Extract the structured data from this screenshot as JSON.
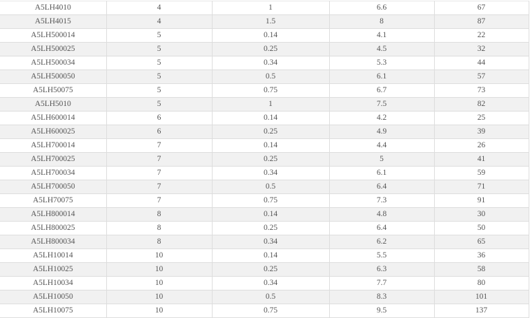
{
  "table": {
    "rows": [
      [
        "A5LH4010",
        "4",
        "1",
        "6.6",
        "67"
      ],
      [
        "A5LH4015",
        "4",
        "1.5",
        "8",
        "87"
      ],
      [
        "A5LH500014",
        "5",
        "0.14",
        "4.1",
        "22"
      ],
      [
        "A5LH500025",
        "5",
        "0.25",
        "4.5",
        "32"
      ],
      [
        "A5LH500034",
        "5",
        "0.34",
        "5.3",
        "44"
      ],
      [
        "A5LH500050",
        "5",
        "0.5",
        "6.1",
        "57"
      ],
      [
        "A5LH50075",
        "5",
        "0.75",
        "6.7",
        "73"
      ],
      [
        "A5LH5010",
        "5",
        "1",
        "7.5",
        "82"
      ],
      [
        "A5LH600014",
        "6",
        "0.14",
        "4.2",
        "25"
      ],
      [
        "A5LH600025",
        "6",
        "0.25",
        "4.9",
        "39"
      ],
      [
        "A5LH700014",
        "7",
        "0.14",
        "4.4",
        "26"
      ],
      [
        "A5LH700025",
        "7",
        "0.25",
        "5",
        "41"
      ],
      [
        "A5LH700034",
        "7",
        "0.34",
        "6.1",
        "59"
      ],
      [
        "A5LH700050",
        "7",
        "0.5",
        "6.4",
        "71"
      ],
      [
        "A5LH70075",
        "7",
        "0.75",
        "7.3",
        "91"
      ],
      [
        "A5LH800014",
        "8",
        "0.14",
        "4.8",
        "30"
      ],
      [
        "A5LH800025",
        "8",
        "0.25",
        "6.4",
        "50"
      ],
      [
        "A5LH800034",
        "8",
        "0.34",
        "6.2",
        "65"
      ],
      [
        "A5LH10014",
        "10",
        "0.14",
        "5.5",
        "36"
      ],
      [
        "A5LH10025",
        "10",
        "0.25",
        "6.3",
        "58"
      ],
      [
        "A5LH10034",
        "10",
        "0.34",
        "7.7",
        "80"
      ],
      [
        "A5LH10050",
        "10",
        "0.5",
        "8.3",
        "101"
      ],
      [
        "A5LH10075",
        "10",
        "0.75",
        "9.5",
        "137"
      ]
    ]
  }
}
